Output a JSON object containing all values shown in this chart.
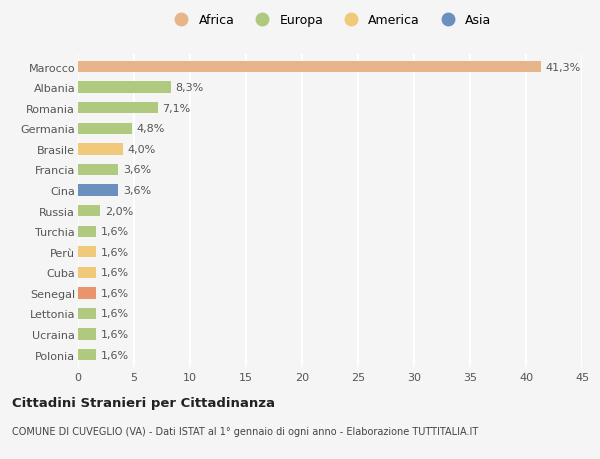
{
  "categories": [
    "Polonia",
    "Ucraina",
    "Lettonia",
    "Senegal",
    "Cuba",
    "Perù",
    "Turchia",
    "Russia",
    "Cina",
    "Francia",
    "Brasile",
    "Germania",
    "Romania",
    "Albania",
    "Marocco"
  ],
  "values": [
    1.6,
    1.6,
    1.6,
    1.6,
    1.6,
    1.6,
    1.6,
    2.0,
    3.6,
    3.6,
    4.0,
    4.8,
    7.1,
    8.3,
    41.3
  ],
  "labels": [
    "1,6%",
    "1,6%",
    "1,6%",
    "1,6%",
    "1,6%",
    "1,6%",
    "1,6%",
    "2,0%",
    "3,6%",
    "3,6%",
    "4,0%",
    "4,8%",
    "7,1%",
    "8,3%",
    "41,3%"
  ],
  "colors": [
    "#afc97e",
    "#afc97e",
    "#afc97e",
    "#e8956d",
    "#f0c97a",
    "#f0c97a",
    "#afc97e",
    "#afc97e",
    "#6b8fbf",
    "#afc97e",
    "#f0c97a",
    "#afc97e",
    "#afc97e",
    "#afc97e",
    "#e8b48a"
  ],
  "legend": {
    "Africa": "#e8b48a",
    "Europa": "#afc97e",
    "America": "#f0c97a",
    "Asia": "#6b8fbf"
  },
  "title": "Cittadini Stranieri per Cittadinanza",
  "subtitle": "COMUNE DI CUVEGLIO (VA) - Dati ISTAT al 1° gennaio di ogni anno - Elaborazione TUTTITALIA.IT",
  "xlim": [
    0,
    45
  ],
  "xticks": [
    0,
    5,
    10,
    15,
    20,
    25,
    30,
    35,
    40,
    45
  ],
  "background_color": "#f5f5f5",
  "grid_color": "#ffffff",
  "bar_height": 0.55,
  "label_fontsize": 8,
  "tick_fontsize": 8
}
